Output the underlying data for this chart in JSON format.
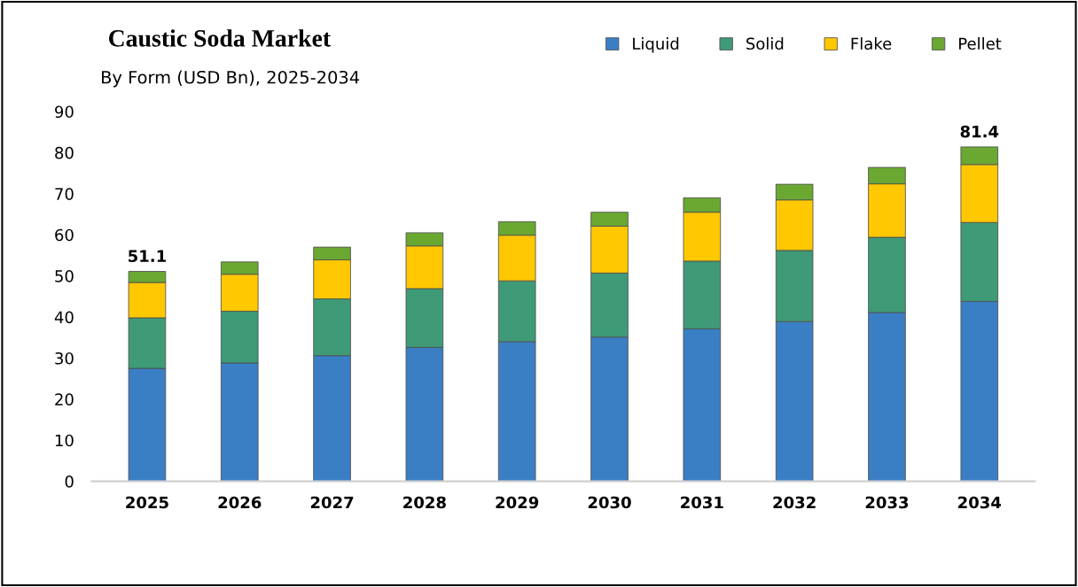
{
  "chart_data": {
    "type": "bar",
    "title": "Caustic Soda Market",
    "subtitle": "By Form (USD Bn), 2025-2034",
    "categories": [
      "2025",
      "2026",
      "2027",
      "2028",
      "2029",
      "2030",
      "2031",
      "2032",
      "2033",
      "2034"
    ],
    "stacked": true,
    "series": [
      {
        "name": "Liquid",
        "color": "#3a7fc4",
        "values": [
          27.5,
          28.8,
          30.6,
          32.6,
          34.0,
          35.1,
          37.1,
          38.9,
          41.1,
          43.8
        ]
      },
      {
        "name": "Solid",
        "color": "#3f9a78",
        "values": [
          12.3,
          12.6,
          13.8,
          14.3,
          14.8,
          15.6,
          16.5,
          17.3,
          18.3,
          19.2
        ]
      },
      {
        "name": "Flake",
        "color": "#ffc800",
        "values": [
          8.6,
          9.0,
          9.5,
          10.4,
          11.1,
          11.4,
          11.9,
          12.3,
          13.0,
          14.1
        ]
      },
      {
        "name": "Pellet",
        "color": "#6aa832",
        "values": [
          2.7,
          3.0,
          3.1,
          3.2,
          3.3,
          3.4,
          3.5,
          3.8,
          4.0,
          4.3
        ]
      }
    ],
    "totals": [
      "51.1",
      null,
      null,
      null,
      null,
      null,
      null,
      null,
      null,
      "81.4"
    ],
    "ylim": [
      0,
      90
    ],
    "yticks": [
      0,
      10,
      20,
      30,
      40,
      50,
      60,
      70,
      80,
      90
    ],
    "grid": false,
    "legend": "top right"
  }
}
